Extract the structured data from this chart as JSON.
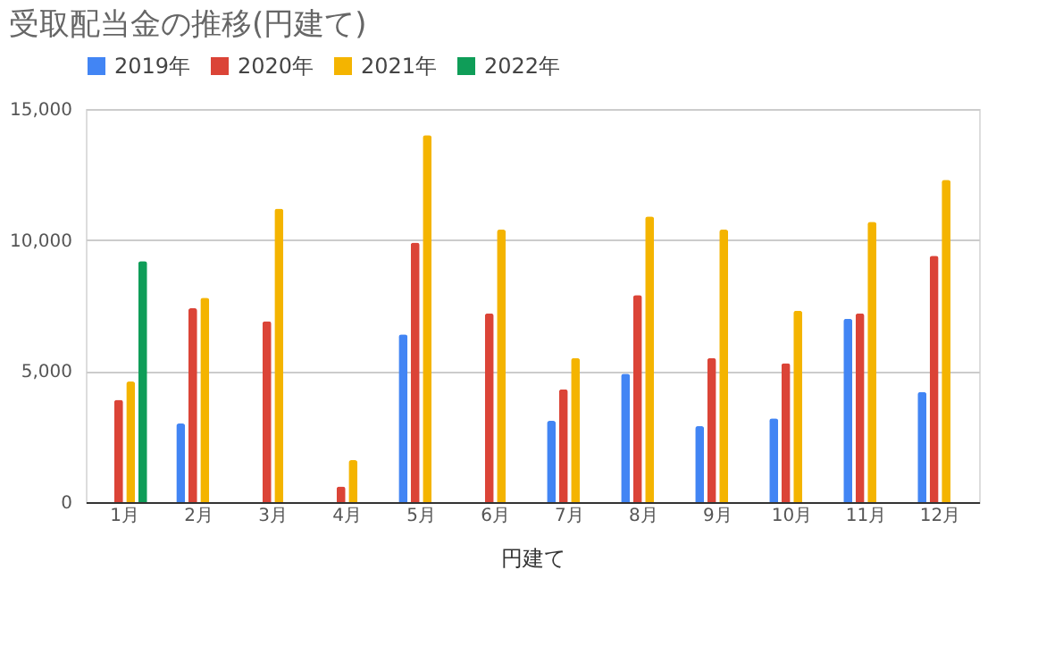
{
  "chart_data": {
    "type": "bar",
    "title": "受取配当金の推移(円建て)",
    "xlabel": "円建て",
    "categories": [
      "1月",
      "2月",
      "3月",
      "4月",
      "5月",
      "6月",
      "7月",
      "8月",
      "9月",
      "10月",
      "11月",
      "12月"
    ],
    "series": [
      {
        "name": "2019年",
        "color": "#4285f4",
        "values": [
          null,
          3000,
          null,
          null,
          6400,
          null,
          3100,
          4900,
          2900,
          3200,
          7000,
          4200
        ]
      },
      {
        "name": "2020年",
        "color": "#db4437",
        "values": [
          3900,
          7400,
          6900,
          600,
          9900,
          7200,
          4300,
          7900,
          5500,
          5300,
          7200,
          9400
        ]
      },
      {
        "name": "2021年",
        "color": "#f4b400",
        "values": [
          4600,
          7800,
          11200,
          1600,
          14000,
          10400,
          5500,
          10900,
          10400,
          7300,
          10700,
          12300
        ]
      },
      {
        "name": "2022年",
        "color": "#0f9d58",
        "values": [
          9200,
          null,
          null,
          null,
          null,
          null,
          null,
          null,
          null,
          null,
          null,
          null
        ]
      }
    ],
    "ylim": [
      0,
      15000
    ],
    "yticks": [
      0,
      {
        "value": 5000,
        "label": "5,000"
      },
      {
        "value": 10000,
        "label": "10,000"
      },
      {
        "value": 15000,
        "label": "15,000"
      }
    ],
    "grid": "y",
    "legend": "top"
  }
}
